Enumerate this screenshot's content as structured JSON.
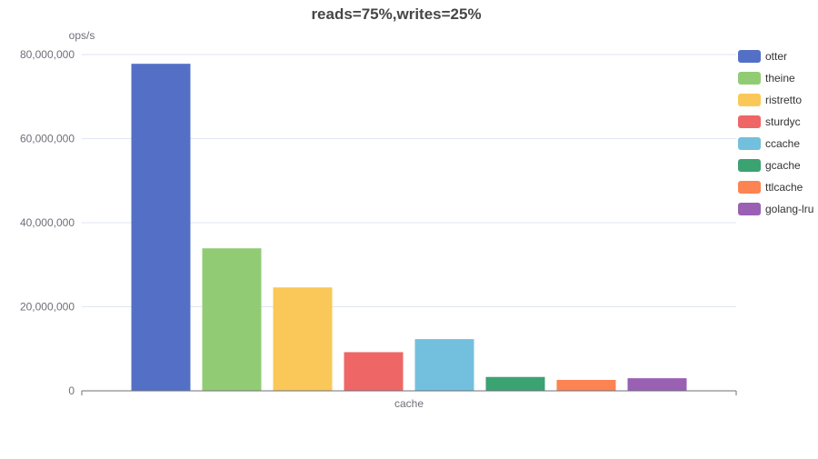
{
  "chart_data": {
    "type": "bar",
    "title": "reads=75%,writes=25%",
    "ylabel": "ops/s",
    "xlabel": "cache",
    "categories": [
      "cache"
    ],
    "ylim": [
      0,
      80000000
    ],
    "yticks": [
      "0",
      "20,000,000",
      "40,000,000",
      "60,000,000",
      "80,000,000"
    ],
    "ytick_values": [
      0,
      20000000,
      40000000,
      60000000,
      80000000
    ],
    "grid": true,
    "legend_position": "right",
    "series": [
      {
        "name": "otter",
        "values": [
          77800000
        ],
        "color": "#5470c6"
      },
      {
        "name": "theine",
        "values": [
          33900000
        ],
        "color": "#91cc75"
      },
      {
        "name": "ristretto",
        "values": [
          24600000
        ],
        "color": "#fac858"
      },
      {
        "name": "sturdyc",
        "values": [
          9200000
        ],
        "color": "#ee6666"
      },
      {
        "name": "ccache",
        "values": [
          12300000
        ],
        "color": "#73c0de"
      },
      {
        "name": "gcache",
        "values": [
          3300000
        ],
        "color": "#3ba272"
      },
      {
        "name": "ttlcache",
        "values": [
          2600000
        ],
        "color": "#fc8452"
      },
      {
        "name": "golang-lru",
        "values": [
          3000000
        ],
        "color": "#9a60b4"
      }
    ]
  }
}
